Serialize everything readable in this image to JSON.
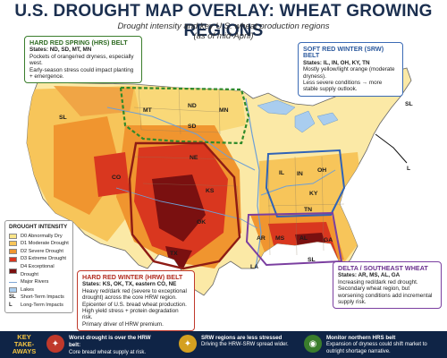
{
  "title": "U.S. DROUGHT MAP OVERLAY: WHEAT GROWING REGIONS",
  "subtitle_line1": "Drought intensity and key U.S. wheat production regions",
  "subtitle_line2": "(as of mid-April)",
  "callouts": {
    "hrs": {
      "title": "HARD RED SPRING (HRS) BELT",
      "states": "States: ND, SD, MT, MN",
      "line1": "Pockets of orange/red dryness, especially west.",
      "line2": "Early-season stress could impact planting + emergence."
    },
    "srw": {
      "title": "SOFT RED WINTER (SRW) BELT",
      "states": "States: IL, IN, OH, KY, TN",
      "line1": "Mostly yellow/light orange (moderate dryness).",
      "line2": "Less severe conditions → more stable supply outlook."
    },
    "hrw": {
      "title": "HARD RED WINTER (HRW) BELT",
      "states": "States: KS, OK, TX, eastern CO, NE",
      "line1": "Heavy red/dark red (severe to exceptional drought) across the core HRW region.",
      "line2": "Epicenter of U.S. bread wheat production.",
      "line3": "High yield stress + protein degradation risk.",
      "line4": "Primary driver of HRW premium."
    },
    "delta": {
      "title": "DELTA / SOUTHEAST WHEAT",
      "states": "States: AR, MS, AL, GA",
      "line1": "Increasing red/dark red drought.",
      "line2": "Secondary wheat region, but worsening conditions add incremental supply risk."
    }
  },
  "legend": {
    "title": "DROUGHT INTENSITY",
    "items": [
      {
        "label": "D0 Abnormally Dry",
        "color": "#fbe58a"
      },
      {
        "label": "D1 Moderate Drought",
        "color": "#f7c55a"
      },
      {
        "label": "D2 Severe Drought",
        "color": "#f0952f"
      },
      {
        "label": "D3 Extreme Drought",
        "color": "#d9371f"
      },
      {
        "label": "D4 Exceptional Drought",
        "color": "#7a1010"
      }
    ],
    "rivers": "Major Rivers",
    "lakes": "Lakes",
    "sl": "Short-Term Impacts",
    "l": "Long-Term Impacts",
    "sl_abbr": "SL",
    "l_abbr": "L"
  },
  "map_labels": {
    "MT": "MT",
    "ND": "ND",
    "MN": "MN",
    "SD": "SD",
    "NE": "NE",
    "CO": "CO",
    "KS": "KS",
    "OK": "OK",
    "TX": "TX",
    "IL": "IL",
    "IN": "IN",
    "OH": "OH",
    "KY": "KY",
    "TN": "TN",
    "AR": "AR",
    "MS": "MS",
    "AL": "AL",
    "GA": "GA",
    "LA": "LA",
    "SL_west": "SL",
    "SL_ne": "SL",
    "L_east": "L",
    "SL_gulf": "SL"
  },
  "takeaways": {
    "label": "KEY TAKE-AWAYS",
    "items": [
      {
        "bold": "Worst drought is over the HRW belt:",
        "text": "Core bread wheat supply at risk.",
        "color": "#c0392b"
      },
      {
        "bold": "SRW regions are less stressed",
        "text": "Driving the HRW-SRW spread wider.",
        "color": "#d4a020"
      },
      {
        "bold": "Monitor northern HRS belt",
        "text": "Expansion of dryness could shift market to outright shortage narrative.",
        "color": "#3a7d2c"
      }
    ]
  }
}
